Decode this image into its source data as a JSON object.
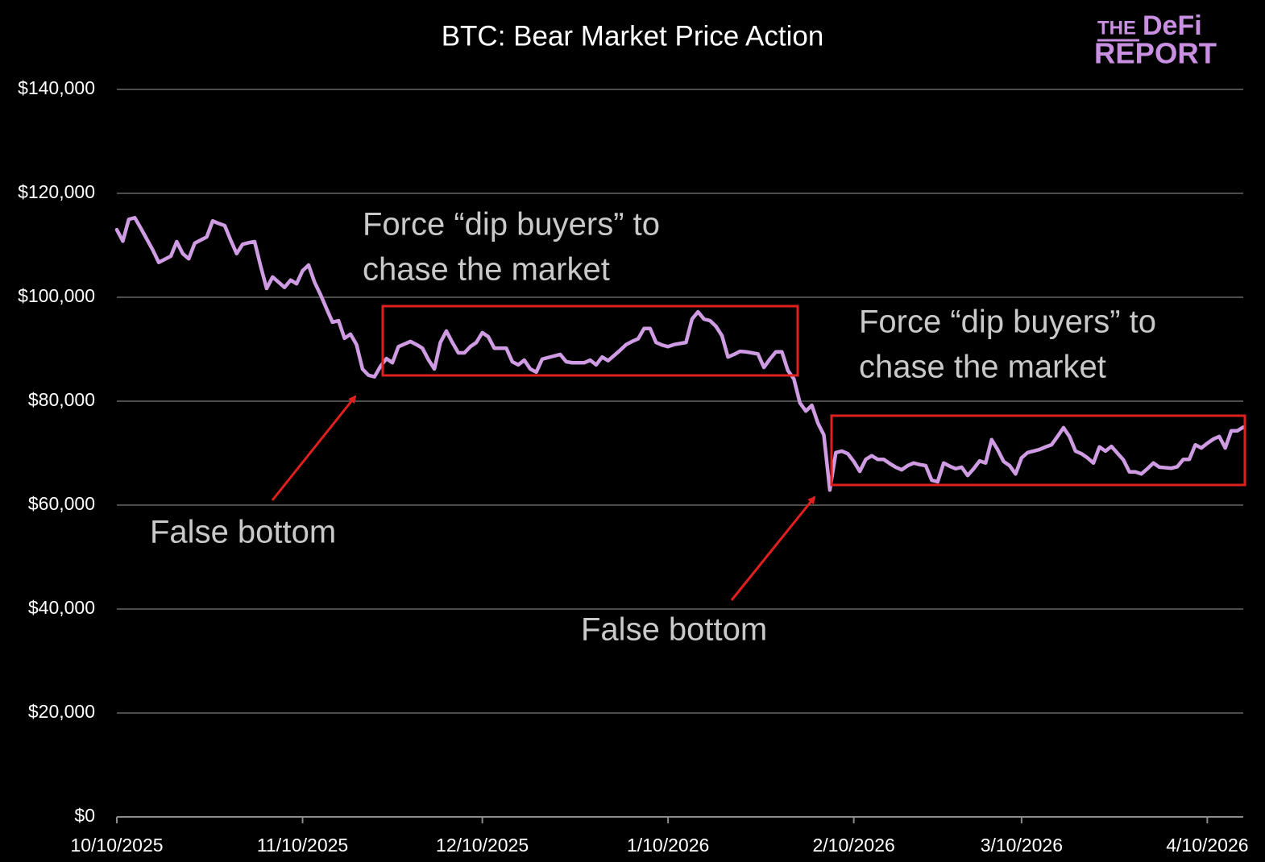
{
  "chart_data": {
    "type": "line",
    "title": "BTC: Bear Market Price Action",
    "logo": [
      "THE",
      "DeFi",
      "REPORT"
    ],
    "annotations": [
      {
        "lines": [
          "Force “dip buyers” to",
          "chase the market"
        ]
      },
      {
        "lines": [
          "Force “dip buyers” to",
          "chase the market"
        ]
      },
      {
        "lines": [
          "False bottom"
        ]
      },
      {
        "lines": [
          "False bottom"
        ]
      }
    ],
    "color": "#cf9be3",
    "grid": true,
    "xlim": [
      "2025-10-10",
      "2026-04-16"
    ],
    "xticks": [
      {
        "value": "2025-10-10",
        "label": "10/10/2025"
      },
      {
        "value": "2025-11-10",
        "label": "11/10/2025"
      },
      {
        "value": "2025-12-10",
        "label": "12/10/2025"
      },
      {
        "value": "2026-01-10",
        "label": "1/10/2026"
      },
      {
        "value": "2026-02-10",
        "label": "2/10/2026"
      },
      {
        "value": "2026-03-10",
        "label": "3/10/2026"
      },
      {
        "value": "2026-04-10",
        "label": "4/10/2026"
      }
    ],
    "ylim": [
      0,
      140000
    ],
    "yticks": [
      {
        "value": 0,
        "label": "$0"
      },
      {
        "value": 20000,
        "label": "$20,000"
      },
      {
        "value": 40000,
        "label": "$40,000"
      },
      {
        "value": 60000,
        "label": "$60,000"
      },
      {
        "value": 80000,
        "label": "$80,000"
      },
      {
        "value": 100000,
        "label": "$100,000"
      },
      {
        "value": 120000,
        "label": "$120,000"
      },
      {
        "value": 140000,
        "label": "$140,000"
      }
    ],
    "x": [
      "2025-10-10",
      "2025-10-11",
      "2025-10-12",
      "2025-10-13",
      "2025-10-14",
      "2025-10-15",
      "2025-10-16",
      "2025-10-17",
      "2025-10-18",
      "2025-10-19",
      "2025-10-20",
      "2025-10-21",
      "2025-10-22",
      "2025-10-23",
      "2025-10-24",
      "2025-10-25",
      "2025-10-26",
      "2025-10-27",
      "2025-10-28",
      "2025-10-29",
      "2025-10-30",
      "2025-10-31",
      "2025-11-01",
      "2025-11-02",
      "2025-11-03",
      "2025-11-04",
      "2025-11-05",
      "2025-11-06",
      "2025-11-07",
      "2025-11-08",
      "2025-11-09",
      "2025-11-10",
      "2025-11-11",
      "2025-11-12",
      "2025-11-13",
      "2025-11-14",
      "2025-11-15",
      "2025-11-16",
      "2025-11-17",
      "2025-11-18",
      "2025-11-19",
      "2025-11-20",
      "2025-11-21",
      "2025-11-22",
      "2025-11-23",
      "2025-11-24",
      "2025-11-25",
      "2025-11-26",
      "2025-11-27",
      "2025-11-28",
      "2025-11-29",
      "2025-11-30",
      "2025-12-01",
      "2025-12-02",
      "2025-12-03",
      "2025-12-04",
      "2025-12-05",
      "2025-12-06",
      "2025-12-07",
      "2025-12-08",
      "2025-12-09",
      "2025-12-10",
      "2025-12-11",
      "2025-12-12",
      "2025-12-13",
      "2025-12-14",
      "2025-12-15",
      "2025-12-16",
      "2025-12-17",
      "2025-12-18",
      "2025-12-19",
      "2025-12-20",
      "2025-12-21",
      "2025-12-22",
      "2025-12-23",
      "2025-12-24",
      "2025-12-25",
      "2025-12-26",
      "2025-12-27",
      "2025-12-28",
      "2025-12-29",
      "2025-12-30",
      "2025-12-31",
      "2026-01-01",
      "2026-01-02",
      "2026-01-03",
      "2026-01-04",
      "2026-01-05",
      "2026-01-06",
      "2026-01-07",
      "2026-01-08",
      "2026-01-09",
      "2026-01-10",
      "2026-01-11",
      "2026-01-12",
      "2026-01-13",
      "2026-01-14",
      "2026-01-15",
      "2026-01-16",
      "2026-01-17",
      "2026-01-18",
      "2026-01-19",
      "2026-01-20",
      "2026-01-21",
      "2026-01-22",
      "2026-01-23",
      "2026-01-24",
      "2026-01-25",
      "2026-01-26",
      "2026-01-27",
      "2026-01-28",
      "2026-01-29",
      "2026-01-30",
      "2026-01-31",
      "2026-02-01",
      "2026-02-02",
      "2026-02-03",
      "2026-02-04",
      "2026-02-05",
      "2026-02-06",
      "2026-02-07",
      "2026-02-08",
      "2026-02-09",
      "2026-02-10",
      "2026-02-11",
      "2026-02-12",
      "2026-02-13",
      "2026-02-14",
      "2026-02-15",
      "2026-02-16",
      "2026-02-17",
      "2026-02-18",
      "2026-02-19",
      "2026-02-20",
      "2026-02-21",
      "2026-02-22",
      "2026-02-23",
      "2026-02-24",
      "2026-02-25",
      "2026-02-26",
      "2026-02-27",
      "2026-02-28",
      "2026-03-01",
      "2026-03-02",
      "2026-03-03",
      "2026-03-04",
      "2026-03-05",
      "2026-03-06",
      "2026-03-07",
      "2026-03-08",
      "2026-03-09",
      "2026-03-10",
      "2026-03-11",
      "2026-03-12",
      "2026-03-13",
      "2026-03-14",
      "2026-03-15",
      "2026-03-16",
      "2026-03-17",
      "2026-03-18",
      "2026-03-19",
      "2026-03-20",
      "2026-03-21",
      "2026-03-22",
      "2026-03-23",
      "2026-03-24",
      "2026-03-25",
      "2026-03-26",
      "2026-03-27",
      "2026-03-28",
      "2026-03-29",
      "2026-03-30",
      "2026-03-31",
      "2026-04-01",
      "2026-04-02",
      "2026-04-03",
      "2026-04-04",
      "2026-04-05",
      "2026-04-06",
      "2026-04-07",
      "2026-04-08",
      "2026-04-09",
      "2026-04-10",
      "2026-04-11",
      "2026-04-12",
      "2026-04-13",
      "2026-04-14",
      "2026-04-15",
      "2026-04-16"
    ],
    "values": [
      113000,
      110800,
      115000,
      115300,
      113300,
      111200,
      109100,
      106700,
      107300,
      107900,
      110700,
      108400,
      107400,
      110400,
      111000,
      111600,
      114700,
      114200,
      113800,
      111000,
      108400,
      110200,
      110500,
      110700,
      106000,
      101700,
      103900,
      102900,
      101900,
      103300,
      102600,
      105100,
      106200,
      102900,
      100500,
      97800,
      95200,
      95500,
      92100,
      92900,
      90900,
      86200,
      85000,
      84700,
      86700,
      88200,
      87400,
      90500,
      91000,
      91500,
      90900,
      90200,
      88000,
      86200,
      91300,
      93500,
      91300,
      89300,
      89300,
      90500,
      91300,
      93200,
      92400,
      90200,
      90200,
      90200,
      87600,
      87000,
      87900,
      86200,
      85600,
      88100,
      88400,
      88700,
      89000,
      87600,
      87400,
      87400,
      87400,
      87900,
      87000,
      88500,
      87800,
      88800,
      89800,
      90900,
      91500,
      92000,
      94000,
      94000,
      91300,
      90800,
      90500,
      90900,
      91100,
      91300,
      95800,
      97200,
      95800,
      95500,
      94400,
      92600,
      88500,
      89000,
      89600,
      89500,
      89300,
      89100,
      86500,
      88100,
      89500,
      89500,
      85900,
      84300,
      79700,
      78100,
      79200,
      75800,
      73500,
      62900,
      70100,
      70400,
      69900,
      68400,
      66500,
      68800,
      69500,
      68800,
      68800,
      68000,
      67300,
      66800,
      67600,
      68100,
      67800,
      67600,
      64800,
      64500,
      68100,
      67500,
      67000,
      67300,
      65700,
      67000,
      68500,
      68100,
      72600,
      70700,
      68400,
      67600,
      66000,
      69100,
      70100,
      70400,
      70700,
      71200,
      71600,
      73200,
      74900,
      73200,
      70400,
      69900,
      69100,
      68100,
      71200,
      70400,
      71300,
      70000,
      68700,
      66400,
      66400,
      66000,
      67000,
      68100,
      67300,
      67200,
      67100,
      67400,
      68800,
      68800,
      71600,
      71000,
      71900,
      72700,
      73200,
      71000,
      74300,
      74300,
      75000
    ]
  }
}
